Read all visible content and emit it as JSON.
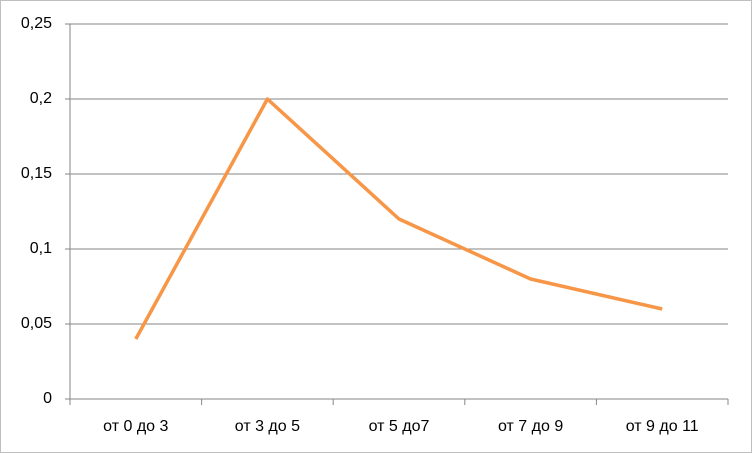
{
  "chart_data": {
    "type": "line",
    "categories": [
      "от 0 до 3",
      "от 3 до 5",
      "от 5 до7",
      "от 7 до 9",
      "от 9 до 11"
    ],
    "series": [
      {
        "color": "#f79646",
        "values": [
          0.04,
          0.2,
          0.12,
          0.08,
          0.06
        ]
      }
    ],
    "ylim": [
      0,
      0.25
    ],
    "yticks": [
      0,
      {
        "value": 0.05,
        "label": "0,05"
      },
      {
        "value": 0.1,
        "label": "0,1"
      },
      {
        "value": 0.15,
        "label": "0,15"
      },
      {
        "value": 0.2,
        "label": "0,2"
      },
      {
        "value": 0.25,
        "label": "0,25"
      }
    ],
    "grid": true
  }
}
